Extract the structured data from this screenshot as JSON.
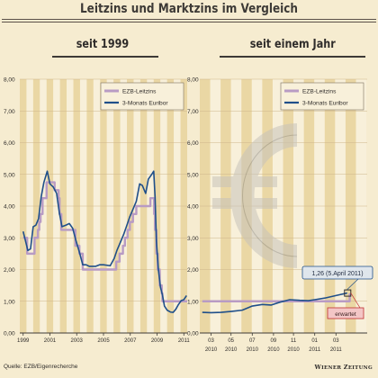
{
  "title": "Leitzins und Marktzins im Vergleich",
  "source": "Quelle: EZB/Eigenrecherche",
  "logo": "Wiener Zeitung",
  "colors": {
    "background": "#f6ecd0",
    "plot_band_light": "#f8f0da",
    "plot_band_dark": "#ead7a4",
    "ezb": "#b89bc4",
    "euribor": "#1f4f8a",
    "forecast_box": "#f3c6c6",
    "forecast_border": "#c03030"
  },
  "chart_data": [
    {
      "type": "line",
      "subtitle": "seit 1999",
      "ylim": [
        0,
        8
      ],
      "yticks": [
        "0,00",
        "1,00",
        "2,00",
        "3,00",
        "4,00",
        "5,00",
        "6,00",
        "7,00",
        "8,00"
      ],
      "xlim": [
        1998.75,
        2011.25
      ],
      "xticks": [
        {
          "x": 1999,
          "label": "1999"
        },
        {
          "x": 2001,
          "label": "2001"
        },
        {
          "x": 2003,
          "label": "2003"
        },
        {
          "x": 2005,
          "label": "2005"
        },
        {
          "x": 2007,
          "label": "2007"
        },
        {
          "x": 2009,
          "label": "2009"
        },
        {
          "x": 2011,
          "label": "2011"
        }
      ],
      "legend": "top-right",
      "series": [
        {
          "name": "EZB-Leitzins",
          "step": true,
          "points": [
            [
              1999.0,
              3.0
            ],
            [
              1999.3,
              2.5
            ],
            [
              1999.85,
              3.0
            ],
            [
              2000.1,
              3.25
            ],
            [
              2000.2,
              3.5
            ],
            [
              2000.3,
              3.75
            ],
            [
              2000.45,
              4.25
            ],
            [
              2000.75,
              4.75
            ],
            [
              2001.35,
              4.5
            ],
            [
              2001.65,
              4.25
            ],
            [
              2001.72,
              3.75
            ],
            [
              2001.85,
              3.25
            ],
            [
              2002.9,
              2.75
            ],
            [
              2003.2,
              2.5
            ],
            [
              2003.45,
              2.0
            ],
            [
              2005.95,
              2.25
            ],
            [
              2006.2,
              2.5
            ],
            [
              2006.45,
              2.75
            ],
            [
              2006.6,
              3.0
            ],
            [
              2006.8,
              3.25
            ],
            [
              2006.97,
              3.5
            ],
            [
              2007.2,
              3.75
            ],
            [
              2007.45,
              4.0
            ],
            [
              2008.5,
              4.25
            ],
            [
              2008.78,
              3.75
            ],
            [
              2008.85,
              3.25
            ],
            [
              2008.95,
              2.5
            ],
            [
              2009.05,
              2.0
            ],
            [
              2009.2,
              1.5
            ],
            [
              2009.35,
              1.25
            ],
            [
              2009.4,
              1.0
            ],
            [
              2011.0,
              1.0
            ],
            [
              2011.25,
              1.0
            ]
          ]
        },
        {
          "name": "3-Monats Euribor",
          "step": false,
          "points": [
            [
              1999.0,
              3.2
            ],
            [
              1999.15,
              2.95
            ],
            [
              1999.35,
              2.6
            ],
            [
              1999.55,
              2.65
            ],
            [
              1999.75,
              3.35
            ],
            [
              1999.95,
              3.4
            ],
            [
              2000.15,
              3.6
            ],
            [
              2000.35,
              4.3
            ],
            [
              2000.55,
              4.75
            ],
            [
              2000.8,
              5.1
            ],
            [
              2001.0,
              4.7
            ],
            [
              2001.25,
              4.6
            ],
            [
              2001.5,
              4.4
            ],
            [
              2001.7,
              3.8
            ],
            [
              2001.9,
              3.35
            ],
            [
              2002.2,
              3.4
            ],
            [
              2002.45,
              3.45
            ],
            [
              2002.7,
              3.3
            ],
            [
              2002.95,
              2.9
            ],
            [
              2003.2,
              2.55
            ],
            [
              2003.45,
              2.15
            ],
            [
              2003.7,
              2.15
            ],
            [
              2003.95,
              2.1
            ],
            [
              2004.4,
              2.1
            ],
            [
              2004.7,
              2.15
            ],
            [
              2005.0,
              2.15
            ],
            [
              2005.5,
              2.12
            ],
            [
              2005.8,
              2.35
            ],
            [
              2006.0,
              2.6
            ],
            [
              2006.25,
              2.85
            ],
            [
              2006.5,
              3.1
            ],
            [
              2006.75,
              3.4
            ],
            [
              2006.95,
              3.65
            ],
            [
              2007.2,
              3.9
            ],
            [
              2007.45,
              4.15
            ],
            [
              2007.7,
              4.7
            ],
            [
              2007.9,
              4.65
            ],
            [
              2008.15,
              4.4
            ],
            [
              2008.35,
              4.85
            ],
            [
              2008.6,
              5.0
            ],
            [
              2008.75,
              5.1
            ],
            [
              2008.85,
              4.3
            ],
            [
              2008.95,
              2.9
            ],
            [
              2009.1,
              2.0
            ],
            [
              2009.25,
              1.45
            ],
            [
              2009.4,
              1.2
            ],
            [
              2009.55,
              0.85
            ],
            [
              2009.75,
              0.72
            ],
            [
              2010.0,
              0.66
            ],
            [
              2010.2,
              0.65
            ],
            [
              2010.4,
              0.75
            ],
            [
              2010.6,
              0.9
            ],
            [
              2010.8,
              1.02
            ],
            [
              2011.0,
              1.05
            ],
            [
              2011.2,
              1.18
            ]
          ]
        }
      ]
    },
    {
      "type": "line",
      "subtitle": "seit einem Jahr",
      "ylim": [
        0,
        8
      ],
      "yticks": [
        "0,00",
        "1,00",
        "2,00",
        "3,00",
        "4,00",
        "5,00",
        "6,00",
        "7,00",
        "8,00"
      ],
      "xlim": [
        2010.08,
        2011.42
      ],
      "xticks": [
        {
          "x": 2010.17,
          "label": "03",
          "year": "2010"
        },
        {
          "x": 2010.33,
          "label": "05",
          "year": "2010"
        },
        {
          "x": 2010.5,
          "label": "07",
          "year": "2010"
        },
        {
          "x": 2010.67,
          "label": "09",
          "year": "2010"
        },
        {
          "x": 2010.83,
          "label": "11",
          "year": "2010"
        },
        {
          "x": 2011.0,
          "label": "01",
          "year": "2011"
        },
        {
          "x": 2011.17,
          "label": "03",
          "year": "2011"
        }
      ],
      "legend": "top-right",
      "annotation": {
        "text": "1,26 (5.April 2011)",
        "x": 2011.26,
        "y": 1.26
      },
      "forecast_label": "erwartet",
      "series": [
        {
          "name": "EZB-Leitzins",
          "step": true,
          "points": [
            [
              2010.1,
              1.0
            ],
            [
              2011.26,
              1.0
            ],
            [
              2011.28,
              1.25
            ]
          ]
        },
        {
          "name": "3-Monats Euribor",
          "step": false,
          "points": [
            [
              2010.1,
              0.65
            ],
            [
              2010.17,
              0.64
            ],
            [
              2010.25,
              0.65
            ],
            [
              2010.33,
              0.68
            ],
            [
              2010.42,
              0.72
            ],
            [
              2010.5,
              0.85
            ],
            [
              2010.58,
              0.9
            ],
            [
              2010.65,
              0.88
            ],
            [
              2010.72,
              0.97
            ],
            [
              2010.8,
              1.05
            ],
            [
              2010.88,
              1.03
            ],
            [
              2010.95,
              1.02
            ],
            [
              2011.0,
              1.05
            ],
            [
              2011.08,
              1.1
            ],
            [
              2011.17,
              1.18
            ],
            [
              2011.26,
              1.26
            ]
          ]
        }
      ]
    }
  ]
}
